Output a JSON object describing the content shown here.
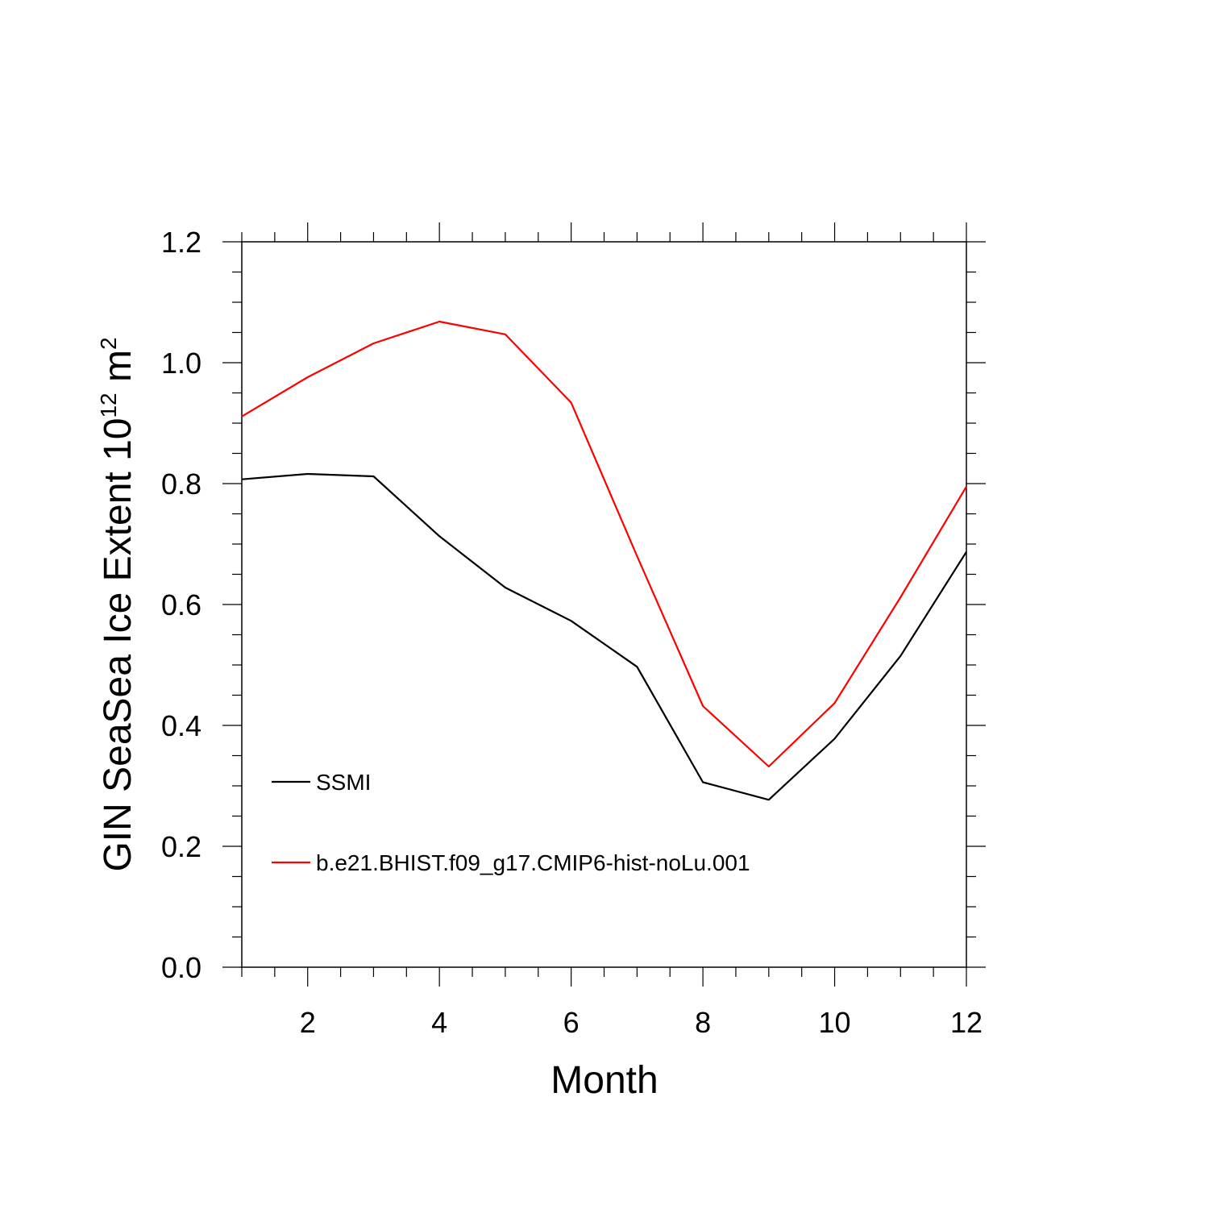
{
  "chart_data": {
    "type": "line",
    "title": "",
    "xlabel": "Month",
    "ylabel_main": "GIN SeaSea Ice Extent 10",
    "ylabel_exp": "12",
    "ylabel_unit": " m",
    "ylabel_unit_exp": "2",
    "xlim": [
      1,
      12
    ],
    "ylim": [
      0.0,
      1.2
    ],
    "x_ticks": [
      2,
      4,
      6,
      8,
      10,
      12
    ],
    "x_tick_labels": [
      "2",
      "4",
      "6",
      "8",
      "10",
      "12"
    ],
    "y_ticks": [
      0.0,
      0.2,
      0.4,
      0.6,
      0.8,
      1.0,
      1.2
    ],
    "y_tick_labels": [
      "0.0",
      "0.2",
      "0.4",
      "0.6",
      "0.8",
      "1.0",
      "1.2"
    ],
    "grid": false,
    "legend_placement": "lower-left",
    "x": [
      1,
      2,
      3,
      4,
      5,
      6,
      7,
      8,
      9,
      10,
      11,
      12
    ],
    "series": [
      {
        "name": "SSMI",
        "color": "#000000",
        "values": [
          0.807,
          0.816,
          0.812,
          0.713,
          0.628,
          0.573,
          0.497,
          0.306,
          0.277,
          0.378,
          0.515,
          0.687
        ]
      },
      {
        "name": "b.e21.BHIST.f09_g17.CMIP6-hist-noLu.001",
        "color": "#ff0000",
        "values": [
          0.911,
          0.976,
          1.032,
          1.068,
          1.047,
          0.934,
          0.68,
          0.432,
          0.332,
          0.437,
          0.612,
          0.795
        ]
      }
    ]
  }
}
